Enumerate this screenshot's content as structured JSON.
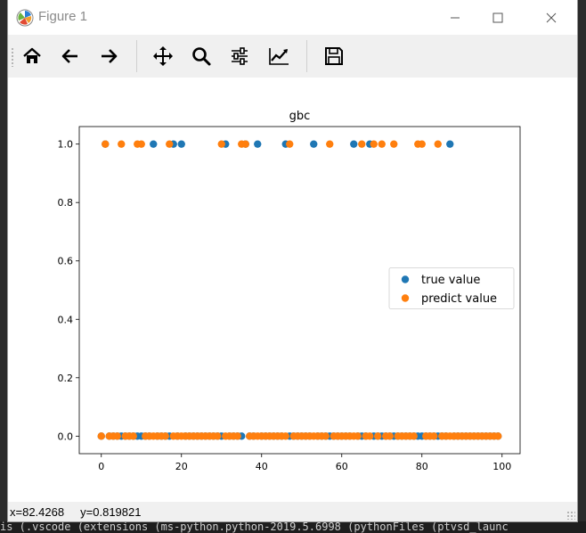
{
  "window": {
    "title": "Figure 1",
    "controls": {
      "minimize": "minimize-icon",
      "maximize": "maximize-icon",
      "close": "close-icon"
    }
  },
  "toolbar": {
    "buttons": [
      {
        "id": "home",
        "icon": "home-icon"
      },
      {
        "id": "back",
        "icon": "arrow-left-icon"
      },
      {
        "id": "forward",
        "icon": "arrow-right-icon"
      },
      {
        "id": "pan",
        "icon": "move-icon"
      },
      {
        "id": "zoom",
        "icon": "magnifier-icon"
      },
      {
        "id": "subplots",
        "icon": "sliders-icon"
      },
      {
        "id": "edit-axis",
        "icon": "chart-line-icon"
      },
      {
        "id": "save",
        "icon": "floppy-disk-icon"
      }
    ]
  },
  "status": {
    "x_label": "x=82.4268",
    "y_label": "y=0.819821"
  },
  "background": {
    "bottom_text": "is (.vscode (extensions (ms-python.python-2019.5.6998 (pythonFiles (ptvsd_launc"
  },
  "chart_data": {
    "type": "scatter",
    "title": "gbc",
    "xlabel": "",
    "ylabel": "",
    "xlim": [
      -5.5,
      104.5
    ],
    "ylim": [
      -0.06,
      1.06
    ],
    "xticks": [
      "0",
      "20",
      "40",
      "60",
      "80",
      "100"
    ],
    "yticks": [
      "0.0",
      "0.2",
      "0.4",
      "0.6",
      "0.8",
      "1.0"
    ],
    "legend": "center-right",
    "series": [
      {
        "name": "true value",
        "color": "#1f77b4",
        "x": [
          0,
          1,
          2,
          3,
          4,
          5,
          6,
          7,
          8,
          9,
          10,
          11,
          12,
          13,
          14,
          15,
          16,
          17,
          18,
          19,
          20,
          21,
          22,
          23,
          24,
          25,
          26,
          27,
          28,
          29,
          30,
          31,
          32,
          33,
          34,
          35,
          36,
          37,
          38,
          39,
          40,
          41,
          42,
          43,
          44,
          45,
          46,
          47,
          48,
          49,
          50,
          51,
          52,
          53,
          54,
          55,
          56,
          57,
          58,
          59,
          60,
          61,
          62,
          63,
          64,
          65,
          66,
          67,
          68,
          69,
          70,
          71,
          72,
          73,
          74,
          75,
          76,
          77,
          78,
          79,
          80,
          81,
          82,
          83,
          84,
          85,
          86,
          87,
          88,
          89,
          90,
          91,
          92,
          93,
          94,
          95,
          96,
          97,
          98,
          99
        ],
        "y": [
          0,
          1,
          0,
          0,
          0,
          0,
          0,
          0,
          0,
          0,
          0,
          0,
          0,
          1,
          0,
          0,
          0,
          0,
          1,
          0,
          1,
          0,
          0,
          0,
          0,
          0,
          0,
          0,
          0,
          0,
          0,
          1,
          0,
          0,
          0,
          0,
          1,
          0,
          0,
          1,
          0,
          0,
          0,
          0,
          0,
          0,
          1,
          0,
          0,
          0,
          0,
          0,
          0,
          1,
          0,
          0,
          0,
          0,
          0,
          0,
          0,
          0,
          0,
          1,
          0,
          0,
          0,
          1,
          0,
          0,
          0,
          0,
          0,
          0,
          0,
          0,
          0,
          0,
          0,
          0,
          0,
          0,
          0,
          0,
          0,
          0,
          0,
          1,
          0,
          0,
          0,
          0,
          0,
          0,
          0,
          0,
          0,
          0,
          0,
          0
        ]
      },
      {
        "name": "predict value",
        "color": "#ff7f0e",
        "x": [
          0,
          1,
          2,
          3,
          4,
          5,
          6,
          7,
          8,
          9,
          10,
          11,
          12,
          13,
          14,
          15,
          16,
          17,
          18,
          19,
          20,
          21,
          22,
          23,
          24,
          25,
          26,
          27,
          28,
          29,
          30,
          31,
          32,
          33,
          34,
          35,
          36,
          37,
          38,
          39,
          40,
          41,
          42,
          43,
          44,
          45,
          46,
          47,
          48,
          49,
          50,
          51,
          52,
          53,
          54,
          55,
          56,
          57,
          58,
          59,
          60,
          61,
          62,
          63,
          64,
          65,
          66,
          67,
          68,
          69,
          70,
          71,
          72,
          73,
          74,
          75,
          76,
          77,
          78,
          79,
          80,
          81,
          82,
          83,
          84,
          85,
          86,
          87,
          88,
          89,
          90,
          91,
          92,
          93,
          94,
          95,
          96,
          97,
          98,
          99
        ],
        "y": [
          0,
          1,
          0,
          0,
          0,
          1,
          0,
          0,
          0,
          1,
          1,
          0,
          0,
          0,
          0,
          0,
          0,
          1,
          0,
          0,
          0,
          0,
          0,
          0,
          0,
          0,
          0,
          0,
          0,
          0,
          1,
          0,
          0,
          0,
          0,
          1,
          1,
          0,
          0,
          0,
          0,
          0,
          0,
          0,
          0,
          0,
          0,
          1,
          0,
          0,
          0,
          0,
          0,
          0,
          0,
          0,
          0,
          1,
          0,
          0,
          0,
          0,
          0,
          0,
          0,
          1,
          0,
          0,
          1,
          0,
          1,
          0,
          0,
          1,
          0,
          0,
          0,
          0,
          0,
          1,
          1,
          0,
          0,
          0,
          1,
          0,
          0,
          0,
          0,
          0,
          0,
          0,
          0,
          0,
          0,
          0,
          0,
          0,
          0,
          0
        ]
      }
    ]
  }
}
